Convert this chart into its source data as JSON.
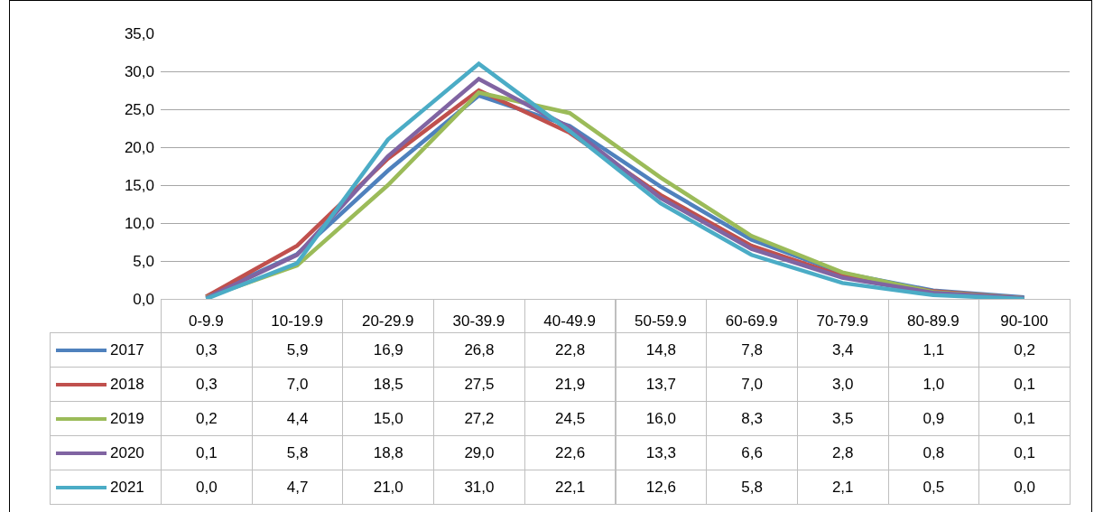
{
  "chart_data": {
    "type": "line",
    "categories": [
      "0-9.9",
      "10-19.9",
      "20-29.9",
      "30-39.9",
      "40-49.9",
      "50-59.9",
      "60-69.9",
      "70-79.9",
      "80-89.9",
      "90-100"
    ],
    "series": [
      {
        "name": "2017",
        "color": "#4f81bd",
        "values": [
          0.3,
          5.9,
          16.9,
          26.8,
          22.8,
          14.8,
          7.8,
          3.4,
          1.1,
          0.2
        ],
        "value_labels": [
          "0,3",
          "5,9",
          "16,9",
          "26,8",
          "22,8",
          "14,8",
          "7,8",
          "3,4",
          "1,1",
          "0,2"
        ]
      },
      {
        "name": "2018",
        "color": "#c0504d",
        "values": [
          0.3,
          7.0,
          18.5,
          27.5,
          21.9,
          13.7,
          7.0,
          3.0,
          1.0,
          0.1
        ],
        "value_labels": [
          "0,3",
          "7,0",
          "18,5",
          "27,5",
          "21,9",
          "13,7",
          "7,0",
          "3,0",
          "1,0",
          "0,1"
        ]
      },
      {
        "name": "2019",
        "color": "#9bbb59",
        "values": [
          0.2,
          4.4,
          15.0,
          27.2,
          24.5,
          16.0,
          8.3,
          3.5,
          0.9,
          0.1
        ],
        "value_labels": [
          "0,2",
          "4,4",
          "15,0",
          "27,2",
          "24,5",
          "16,0",
          "8,3",
          "3,5",
          "0,9",
          "0,1"
        ]
      },
      {
        "name": "2020",
        "color": "#8064a2",
        "values": [
          0.1,
          5.8,
          18.8,
          29.0,
          22.6,
          13.3,
          6.6,
          2.8,
          0.8,
          0.1
        ],
        "value_labels": [
          "0,1",
          "5,8",
          "18,8",
          "29,0",
          "22,6",
          "13,3",
          "6,6",
          "2,8",
          "0,8",
          "0,1"
        ]
      },
      {
        "name": "2021",
        "color": "#4bacc6",
        "values": [
          0.0,
          4.7,
          21.0,
          31.0,
          22.1,
          12.6,
          5.8,
          2.1,
          0.5,
          0.0
        ],
        "value_labels": [
          "0,0",
          "4,7",
          "21,0",
          "31,0",
          "22,1",
          "12,6",
          "5,8",
          "2,1",
          "0,5",
          "0,0"
        ]
      }
    ],
    "ylim": [
      0,
      35
    ],
    "yticks": [
      {
        "value": 0,
        "label": "0,0"
      },
      {
        "value": 5,
        "label": "5,0"
      },
      {
        "value": 10,
        "label": "10,0"
      },
      {
        "value": 15,
        "label": "15,0"
      },
      {
        "value": 20,
        "label": "20,0"
      },
      {
        "value": 25,
        "label": "25,0"
      },
      {
        "value": 30,
        "label": "30,0"
      },
      {
        "value": 35,
        "label": "35,0"
      }
    ],
    "grid": "y",
    "legend": "bottom left",
    "marker": "none",
    "line_style": "solid"
  }
}
